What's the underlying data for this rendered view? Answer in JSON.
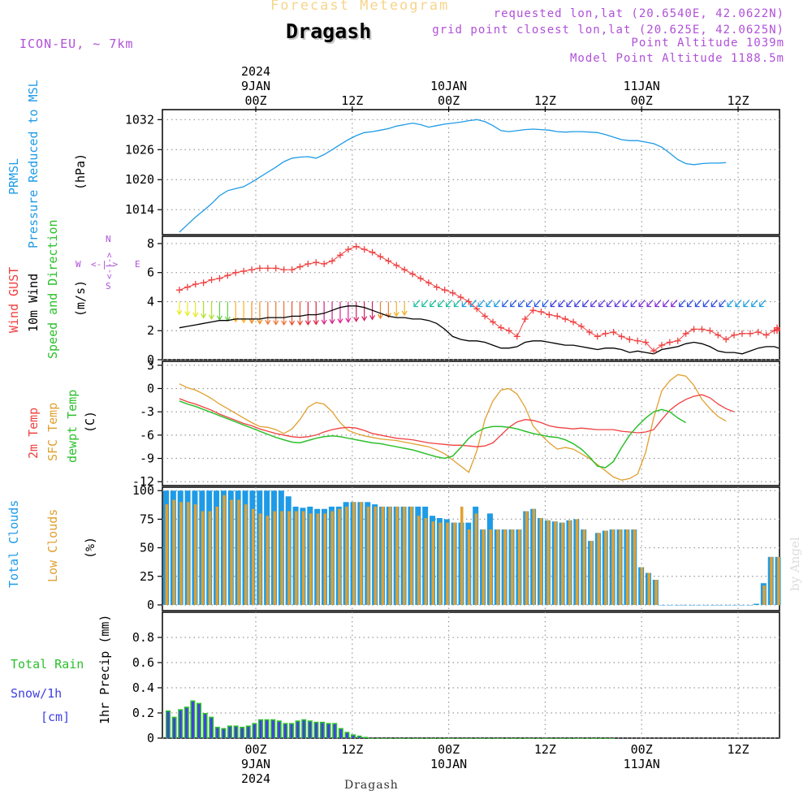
{
  "header": {
    "forecast_title": "Forecast Meteogram",
    "location": "Dragash",
    "model": "ICON-EU, ~ 7km",
    "requested": "requested lon,lat (20.6540E, 42.0622N)",
    "grid_point": "grid point closest lon,lat (20.625E, 42.0625N)",
    "point_altitude": "Point Altitude 1039m",
    "model_altitude": "Model Point Altitude 1188.5m",
    "footer_location": "Dragash",
    "watermark": "by Angel"
  },
  "time_axis": {
    "top": [
      {
        "lines": [
          "2024",
          "9JAN",
          "00Z"
        ],
        "hour": 0
      },
      {
        "lines": [
          "12Z"
        ],
        "hour": 12
      },
      {
        "lines": [
          "10JAN",
          "00Z"
        ],
        "hour": 24
      },
      {
        "lines": [
          "12Z"
        ],
        "hour": 36
      },
      {
        "lines": [
          "11JAN",
          "00Z"
        ],
        "hour": 48
      },
      {
        "lines": [
          "12Z"
        ],
        "hour": 60
      }
    ],
    "bottom": [
      {
        "lines": [
          "00Z",
          "9JAN",
          "2024"
        ],
        "hour": 0
      },
      {
        "lines": [
          "12Z"
        ],
        "hour": 12
      },
      {
        "lines": [
          "00Z",
          "10JAN"
        ],
        "hour": 24
      },
      {
        "lines": [
          "12Z"
        ],
        "hour": 36
      },
      {
        "lines": [
          "00Z",
          "11JAN"
        ],
        "hour": 48
      },
      {
        "lines": [
          "12Z"
        ],
        "hour": 60
      }
    ]
  },
  "panel_labels": {
    "pressure": [
      {
        "text": "PRMSL",
        "color": "#1e9be6"
      },
      {
        "text": "Pressure Reduced to MSL",
        "color": "#1e9be6"
      },
      {
        "text": "(hPa)",
        "color": "#000000"
      }
    ],
    "wind": [
      {
        "text": "Wind GUST",
        "color": "#f04040"
      },
      {
        "text": "10m Wind",
        "color": "#000000"
      },
      {
        "text": "Speed and Direction",
        "color": "#2cc02c"
      },
      {
        "text": "(m/s)",
        "color": "#000000"
      }
    ],
    "compass": {
      "n": "N",
      "s": "S",
      "w": "W",
      "e": "E",
      "arrows_h": "<-|->",
      "arrows_v": "<-|->"
    },
    "temp": [
      {
        "text": "2m Temp",
        "color": "#f04040"
      },
      {
        "text": "SFC Temp",
        "color": "#e0a030"
      },
      {
        "text": "dewpt Temp",
        "color": "#2cc02c"
      },
      {
        "text": "(C)",
        "color": "#000000"
      }
    ],
    "clouds": [
      {
        "text": "Total Clouds",
        "color": "#1e9be6"
      },
      {
        "text": "Low Clouds",
        "color": "#e0a030"
      },
      {
        "text": "(%)",
        "color": "#000000"
      }
    ],
    "precip_left": [
      {
        "text": "Total  Rain",
        "color": "#2cc02c"
      },
      {
        "text": "Snow/1h",
        "color": "#4040e0"
      },
      {
        "text": "[cm]",
        "color": "#4040e0"
      }
    ],
    "precip_axis": "1hr Precip (mm)"
  },
  "colors": {
    "pressure": "#1e9be6",
    "gust": "#f04040",
    "wind": "#000000",
    "temp2m": "#f04040",
    "sfc": "#e0a030",
    "dewpt": "#2cc02c",
    "total_cloud": "#1e9be6",
    "low_cloud": "#e0a030",
    "rain": "#2cc02c",
    "snow": "#4040e0"
  },
  "chart_data": [
    {
      "type": "line",
      "name": "pressure",
      "title": "PRMSL Pressure Reduced to MSL",
      "ylabel": "(hPa)",
      "start_hour": -9.5,
      "step_hours": 1,
      "ylim": [
        1009,
        1034
      ],
      "yticks": [
        1014,
        1020,
        1026,
        1032
      ],
      "values": [
        1009.5,
        1011,
        1012.5,
        1013.8,
        1015.2,
        1016.8,
        1017.8,
        1018.2,
        1018.6,
        1019.5,
        1020.5,
        1021.5,
        1022.5,
        1023.6,
        1024.3,
        1024.5,
        1024.6,
        1024.3,
        1025.0,
        1026.0,
        1027.0,
        1028.0,
        1028.8,
        1029.4,
        1029.6,
        1029.9,
        1030.2,
        1030.7,
        1031.0,
        1031.3,
        1031.0,
        1030.5,
        1030.8,
        1031.1,
        1031.3,
        1031.5,
        1031.8,
        1032.0,
        1031.6,
        1030.8,
        1029.8,
        1029.6,
        1029.8,
        1030.0,
        1030.1,
        1030.0,
        1029.9,
        1029.6,
        1029.5,
        1029.6,
        1029.6,
        1029.5,
        1029.4,
        1029.0,
        1028.5,
        1028.0,
        1027.8,
        1027.8,
        1027.5,
        1027.2,
        1026.5,
        1025.3,
        1024.0,
        1023.2,
        1023.0,
        1023.2,
        1023.3,
        1023.3,
        1023.4
      ]
    },
    {
      "type": "line",
      "name": "wind",
      "ylabel": "(m/s)",
      "start_hour": -9.5,
      "step_hours": 1,
      "ylim": [
        0,
        8.5
      ],
      "yticks": [
        0,
        2,
        4,
        6,
        8
      ],
      "series": [
        {
          "name": "Wind GUST",
          "values": [
            4.8,
            5.0,
            5.2,
            5.3,
            5.5,
            5.6,
            5.8,
            6.0,
            6.1,
            6.2,
            6.3,
            6.3,
            6.3,
            6.2,
            6.2,
            6.4,
            6.6,
            6.7,
            6.6,
            6.8,
            7.2,
            7.6,
            7.8,
            7.6,
            7.4,
            7.1,
            6.8,
            6.5,
            6.2,
            5.9,
            5.6,
            5.3,
            5.0,
            4.8,
            4.6,
            4.3,
            4.0,
            3.5,
            3.0,
            2.6,
            2.2,
            2.0,
            1.6,
            2.8,
            3.4,
            3.3,
            3.1,
            3.0,
            2.8,
            2.6,
            2.3,
            1.9,
            1.6,
            1.8,
            1.9,
            1.6,
            1.4,
            1.3,
            1.2,
            0.6,
            1.0,
            1.2,
            1.3,
            1.8,
            2.1,
            2.1,
            2.0,
            1.7,
            1.4,
            1.7,
            1.8,
            1.8,
            1.9,
            1.7,
            2.0,
            2.2,
            2.1,
            2.0
          ]
        },
        {
          "name": "10m Wind",
          "values": [
            2.2,
            2.3,
            2.4,
            2.5,
            2.6,
            2.7,
            2.7,
            2.8,
            2.8,
            2.8,
            2.8,
            2.9,
            2.9,
            2.9,
            3.0,
            3.0,
            3.1,
            3.1,
            3.2,
            3.4,
            3.6,
            3.7,
            3.7,
            3.6,
            3.4,
            3.2,
            3.0,
            2.9,
            2.9,
            2.8,
            2.8,
            2.7,
            2.5,
            2.1,
            1.6,
            1.4,
            1.3,
            1.3,
            1.2,
            1.0,
            0.8,
            0.8,
            0.9,
            1.2,
            1.3,
            1.3,
            1.2,
            1.1,
            1.0,
            1.0,
            0.9,
            0.8,
            0.7,
            0.8,
            0.8,
            0.7,
            0.5,
            0.6,
            0.5,
            0.4,
            0.7,
            0.8,
            0.9,
            1.1,
            1.2,
            1.1,
            0.9,
            0.6,
            0.5,
            0.5,
            0.4,
            0.6,
            0.8,
            0.9,
            0.9,
            0.8,
            0.8,
            0.8
          ]
        }
      ],
      "direction_arrows": [
        {
          "hours_from": -9.5,
          "hours_to": 19,
          "direction": "down",
          "speed_from": 4,
          "speed_to": 2.4
        },
        {
          "hours_from": 20,
          "hours_to": 63.5,
          "direction": "left-down",
          "speed_from": 4,
          "speed_to": 3.4
        }
      ]
    },
    {
      "type": "line",
      "name": "temperature",
      "ylabel": "(C)",
      "start_hour": -9.5,
      "step_hours": 1,
      "ylim": [
        -12.5,
        3.5
      ],
      "yticks": [
        -12,
        -9,
        -6,
        -3,
        0,
        3
      ],
      "series": [
        {
          "name": "2m Temp",
          "values": [
            -1.3,
            -1.7,
            -2.0,
            -2.4,
            -2.8,
            -3.3,
            -3.7,
            -4.1,
            -4.5,
            -4.8,
            -5.2,
            -5.5,
            -5.8,
            -6.0,
            -6.2,
            -6.3,
            -6.2,
            -6.0,
            -5.6,
            -5.3,
            -5.1,
            -5.0,
            -5.1,
            -5.4,
            -5.8,
            -6.0,
            -6.2,
            -6.4,
            -6.5,
            -6.6,
            -6.8,
            -7.0,
            -7.1,
            -7.2,
            -7.3,
            -7.3,
            -7.4,
            -7.5,
            -7.4,
            -7.0,
            -6.0,
            -5.0,
            -4.3,
            -4.0,
            -4.1,
            -4.4,
            -4.8,
            -5.0,
            -5.1,
            -5.2,
            -5.1,
            -5.2,
            -5.3,
            -5.3,
            -5.3,
            -5.5,
            -5.6,
            -5.7,
            -5.6,
            -5.3,
            -4.0,
            -2.8,
            -2.0,
            -1.4,
            -1.0,
            -0.8,
            -1.2,
            -2.0,
            -2.6,
            -3.0
          ]
        },
        {
          "name": "SFC Temp",
          "values": [
            0.6,
            0.1,
            -0.2,
            -0.7,
            -1.3,
            -2.0,
            -2.6,
            -3.2,
            -3.8,
            -4.4,
            -4.9,
            -5.0,
            -5.3,
            -5.8,
            -5.2,
            -4.0,
            -2.4,
            -1.8,
            -2.0,
            -3.0,
            -4.4,
            -5.4,
            -5.8,
            -6.1,
            -6.3,
            -6.5,
            -6.6,
            -6.7,
            -6.9,
            -7.1,
            -7.3,
            -7.5,
            -7.9,
            -8.4,
            -9.2,
            -10.0,
            -10.8,
            -8.0,
            -4.0,
            -1.6,
            -0.2,
            0.0,
            -0.7,
            -2.4,
            -4.8,
            -6.0,
            -7.0,
            -7.8,
            -7.6,
            -7.8,
            -8.4,
            -9.0,
            -9.8,
            -10.6,
            -11.4,
            -11.8,
            -11.6,
            -11.0,
            -8.2,
            -3.8,
            -0.3,
            1.0,
            1.8,
            1.6,
            0.4,
            -1.4,
            -2.6,
            -3.6,
            -4.2
          ]
        },
        {
          "name": "dewpt Temp",
          "values": [
            -1.6,
            -2.0,
            -2.3,
            -2.7,
            -3.1,
            -3.5,
            -3.9,
            -4.3,
            -4.7,
            -5.1,
            -5.5,
            -5.9,
            -6.3,
            -6.6,
            -6.9,
            -7.0,
            -6.7,
            -6.4,
            -6.2,
            -6.1,
            -6.2,
            -6.4,
            -6.6,
            -6.8,
            -7.0,
            -7.1,
            -7.3,
            -7.5,
            -7.7,
            -7.9,
            -8.2,
            -8.5,
            -8.8,
            -9.0,
            -8.7,
            -7.6,
            -6.4,
            -5.6,
            -5.1,
            -4.9,
            -4.9,
            -5.0,
            -5.2,
            -5.5,
            -5.8,
            -6.0,
            -6.2,
            -6.3,
            -6.6,
            -7.1,
            -7.8,
            -8.8,
            -10.0,
            -10.2,
            -9.4,
            -7.6,
            -6.0,
            -4.8,
            -3.8,
            -3.0,
            -2.7,
            -3.0,
            -3.8,
            -4.4
          ]
        }
      ]
    },
    {
      "type": "bar",
      "name": "clouds",
      "ylabel": "(%)",
      "start_hour": -9.5,
      "step_hours": 1,
      "ylim": [
        -5,
        103
      ],
      "yticks": [
        0,
        25,
        50,
        75,
        100
      ],
      "series": [
        {
          "name": "Total Clouds",
          "values": [
            100,
            100,
            100,
            100,
            100,
            100,
            100,
            100,
            100,
            100,
            100,
            100,
            100,
            100,
            100,
            100,
            100,
            95,
            86,
            85,
            86,
            84,
            84,
            86,
            86,
            90,
            90,
            90,
            90,
            88,
            86,
            86,
            86,
            86,
            86,
            86,
            86,
            78,
            76,
            75,
            72,
            72,
            72,
            86,
            66,
            80,
            66,
            66,
            66,
            66,
            82,
            84,
            76,
            74,
            73,
            72,
            74,
            75,
            66,
            56,
            63,
            65,
            66,
            66,
            66,
            66,
            33,
            28,
            22,
            0,
            0,
            0,
            0,
            0,
            0,
            0,
            0,
            0,
            0,
            0,
            0,
            0,
            1,
            19,
            42,
            42,
            34
          ]
        },
        {
          "name": "Low Clouds",
          "values": [
            88,
            92,
            90,
            90,
            88,
            82,
            82,
            86,
            96,
            92,
            92,
            88,
            84,
            80,
            78,
            82,
            82,
            82,
            82,
            82,
            80,
            80,
            80,
            82,
            84,
            86,
            90,
            90,
            86,
            86,
            86,
            86,
            86,
            86,
            86,
            78,
            76,
            73,
            72,
            72,
            72,
            86,
            66,
            80,
            66,
            66,
            66,
            66,
            66,
            66,
            82,
            84,
            76,
            74,
            73,
            72,
            74,
            75,
            66,
            56,
            63,
            65,
            66,
            66,
            66,
            66,
            33,
            28,
            22,
            0,
            0,
            0,
            0,
            0,
            0,
            0,
            0,
            0,
            0,
            0,
            0,
            0,
            0,
            17,
            42,
            42,
            34
          ]
        }
      ]
    },
    {
      "type": "bar",
      "name": "precip",
      "ylabel": "1hr Precip (mm)",
      "start_hour": -9.5,
      "step_hours": 1,
      "ylim": [
        0,
        1.0
      ],
      "yticks": [
        0,
        0.2,
        0.4,
        0.6,
        0.8
      ],
      "series": [
        {
          "name": "Total Rain",
          "values": [
            0.22,
            0.17,
            0.23,
            0.25,
            0.3,
            0.28,
            0.2,
            0.17,
            0.09,
            0.08,
            0.1,
            0.1,
            0.09,
            0.1,
            0.12,
            0.15,
            0.15,
            0.15,
            0.14,
            0.12,
            0.12,
            0.14,
            0.15,
            0.14,
            0.13,
            0.13,
            0.12,
            0.12,
            0.08,
            0.05,
            0.03,
            0.02,
            0.01,
            0.0,
            0.0,
            0.0,
            0.0,
            0.0,
            0.0,
            0.0,
            0.0,
            0.0,
            0.0,
            0.0,
            0.0,
            0.0,
            0.0,
            0.0,
            0.0,
            0.0,
            0.0,
            0.0,
            0.0,
            0.0,
            0.0,
            0.0,
            0.0,
            0.0,
            0.0,
            0.0,
            0.0,
            0.0,
            0.0,
            0.0,
            0.0,
            0.0,
            0.0,
            0.0,
            0.0,
            0.0,
            0.0,
            0.0,
            0.0
          ]
        },
        {
          "name": "Snow/1h",
          "values": [
            0.21,
            0.16,
            0.22,
            0.24,
            0.29,
            0.27,
            0.19,
            0.16,
            0.08,
            0.07,
            0.09,
            0.09,
            0.08,
            0.09,
            0.11,
            0.14,
            0.14,
            0.14,
            0.13,
            0.11,
            0.11,
            0.13,
            0.14,
            0.13,
            0.12,
            0.12,
            0.11,
            0.11,
            0.07,
            0.04,
            0.02,
            0.01,
            0.0,
            0.0,
            0.0,
            0.0,
            0.0,
            0.0,
            0.0,
            0.0,
            0.0,
            0.0,
            0.0,
            0.0,
            0.0,
            0.0,
            0.0,
            0.0,
            0.0,
            0.0,
            0.0,
            0.0,
            0.0,
            0.0,
            0.0,
            0.0,
            0.0,
            0.0,
            0.0,
            0.0,
            0.0,
            0.0,
            0.0,
            0.0,
            0.0,
            0.0,
            0.0,
            0.0,
            0.0,
            0.0,
            0.0,
            0.0,
            0.0
          ]
        }
      ]
    }
  ]
}
